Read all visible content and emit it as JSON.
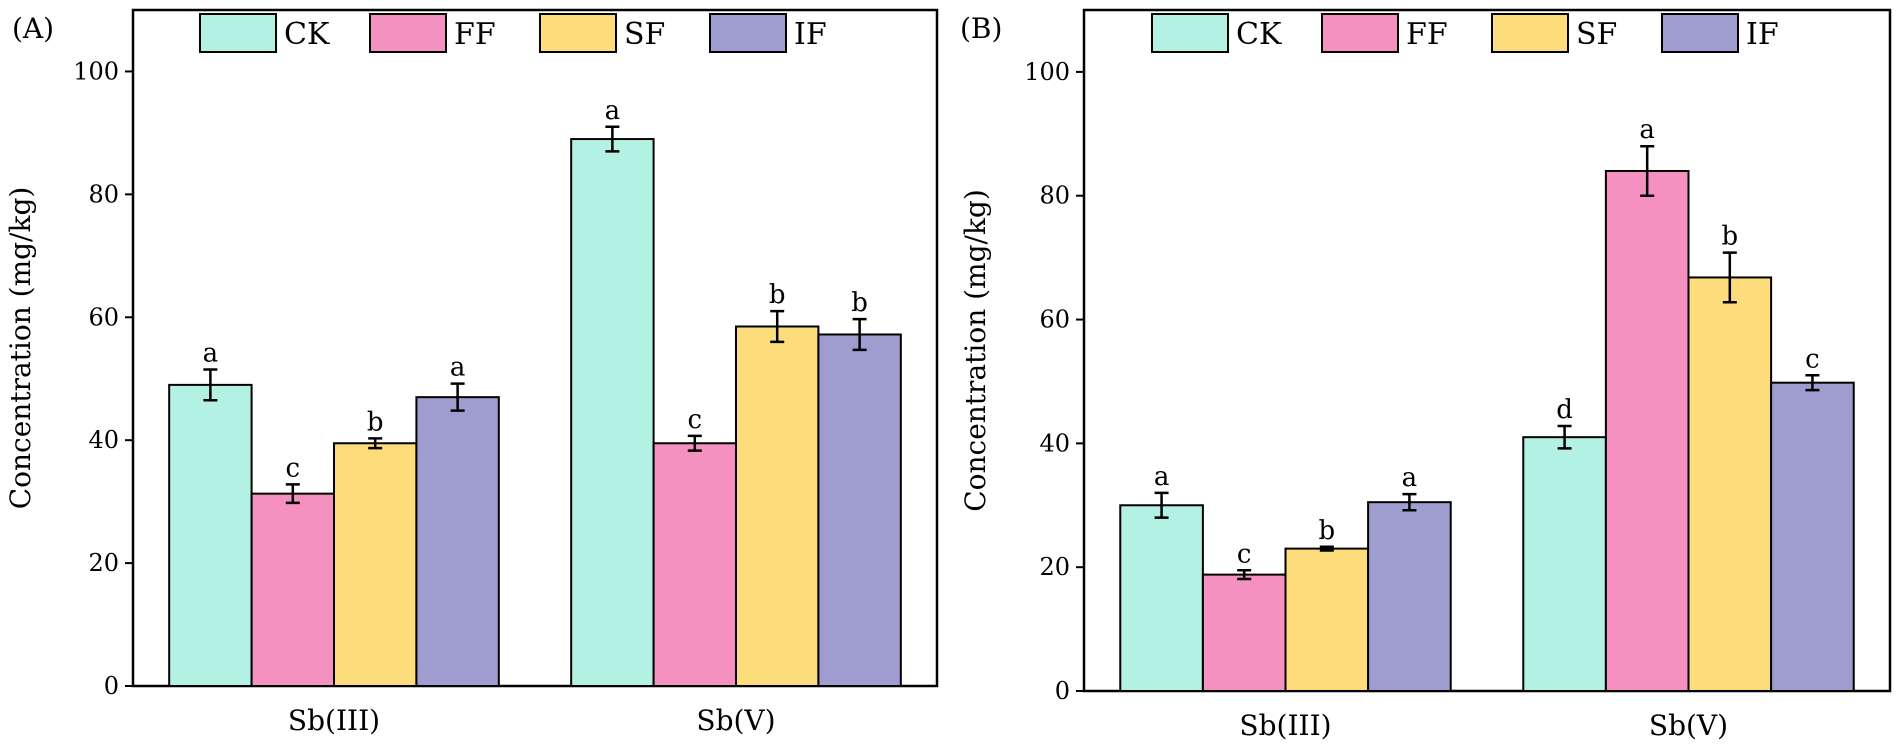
{
  "chart_data": [
    {
      "type": "bar",
      "panel_label": "(A)",
      "categories": [
        "Sb(III)",
        "Sb(V)"
      ],
      "series": [
        {
          "name": "CK",
          "color": "#b3f2e3",
          "values": [
            49,
            89
          ],
          "errors": [
            2.5,
            2.0
          ],
          "letters": [
            "a",
            "a"
          ]
        },
        {
          "name": "FF",
          "color": "#f591c1",
          "values": [
            31.3,
            39.5
          ],
          "errors": [
            1.5,
            1.2
          ],
          "letters": [
            "c",
            "c"
          ]
        },
        {
          "name": "SF",
          "color": "#fddc7c",
          "values": [
            39.5,
            58.5
          ],
          "errors": [
            0.8,
            2.5
          ],
          "letters": [
            "b",
            "b"
          ]
        },
        {
          "name": "IF",
          "color": "#9f9dcf",
          "values": [
            47,
            57.2
          ],
          "errors": [
            2.2,
            2.5
          ],
          "letters": [
            "a",
            "b"
          ]
        }
      ],
      "ylabel": "Concentration (mg/kg)",
      "ylim": [
        0,
        110
      ],
      "yticks": [
        0,
        20,
        40,
        60,
        80,
        100
      ],
      "ytick_labels": [
        "0",
        "20",
        "40",
        "60",
        "80",
        "100"
      ],
      "legend": "top-center"
    },
    {
      "type": "bar",
      "panel_label": "(B)",
      "categories": [
        "Sb(III)",
        "Sb(V)"
      ],
      "series": [
        {
          "name": "CK",
          "color": "#b3f2e3",
          "values": [
            30,
            41
          ],
          "errors": [
            2.0,
            1.8
          ],
          "letters": [
            "a",
            "d"
          ]
        },
        {
          "name": "FF",
          "color": "#f591c1",
          "values": [
            18.8,
            84
          ],
          "errors": [
            0.7,
            4.0
          ],
          "letters": [
            "c",
            "a"
          ]
        },
        {
          "name": "SF",
          "color": "#fddc7c",
          "values": [
            23,
            66.8
          ],
          "errors": [
            0.3,
            4.0
          ],
          "letters": [
            "b",
            "b"
          ]
        },
        {
          "name": "IF",
          "color": "#9f9dcf",
          "values": [
            30.5,
            49.8
          ],
          "errors": [
            1.3,
            1.2
          ],
          "letters": [
            "a",
            "c"
          ]
        }
      ],
      "ylabel": "Concentration (mg/kg)",
      "ylim": [
        0,
        110
      ],
      "yticks": [
        0,
        20,
        40,
        60,
        80,
        100
      ],
      "ytick_labels": [
        "0",
        "20",
        "40",
        "60",
        "80",
        "100"
      ],
      "legend": "top-center"
    }
  ]
}
